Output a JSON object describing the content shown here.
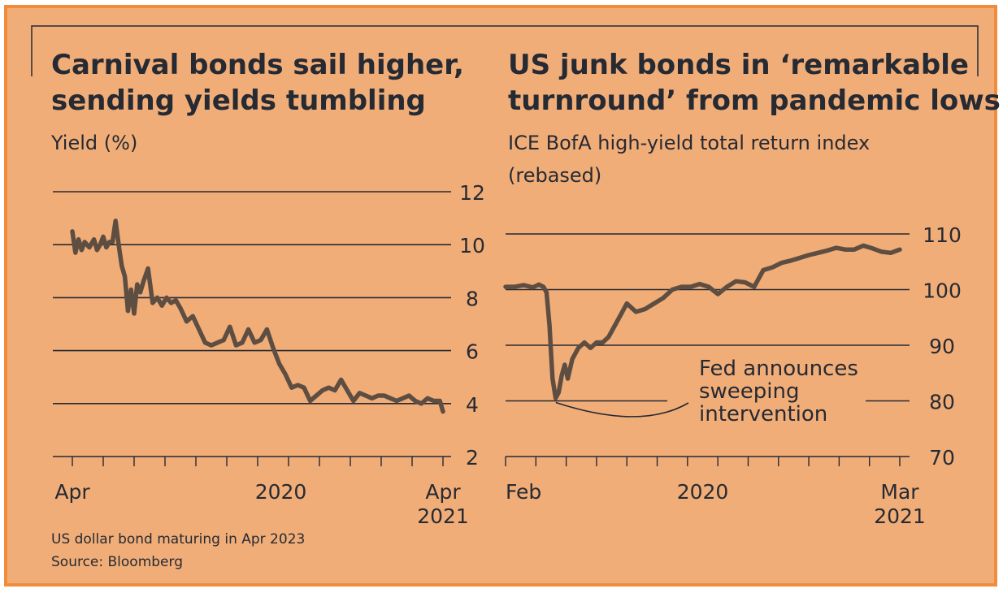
{
  "colors": {
    "background": "#f1ad78",
    "border": "#f08c3c",
    "line": "#5e4e42",
    "ink": "#262a33"
  },
  "chart_data": [
    {
      "type": "line",
      "title": "Carnival bonds sail higher, sending yields tumbling",
      "subtitle": "Yield (%)",
      "ylabel": "Yield (%)",
      "ylim": [
        2,
        12
      ],
      "yticks": [
        2,
        4,
        6,
        8,
        10,
        12
      ],
      "x_range": [
        0,
        12
      ],
      "x_tick_labels": [
        {
          "x": 0,
          "label": "Apr"
        },
        {
          "x": 6.75,
          "label": "2020"
        },
        {
          "x": 12,
          "label": "Apr\n2021"
        }
      ],
      "x_tick_positions": [
        0,
        1,
        2,
        3,
        4,
        5,
        6,
        7,
        8,
        9,
        10,
        11,
        12
      ],
      "grid": true,
      "footnote": "US dollar bond maturing in Apr 2023",
      "source": "Source: Bloomberg",
      "series": [
        {
          "name": "Carnival bond yield",
          "x": [
            0,
            0.1,
            0.2,
            0.3,
            0.4,
            0.55,
            0.7,
            0.8,
            0.9,
            1.0,
            1.1,
            1.2,
            1.3,
            1.4,
            1.5,
            1.6,
            1.7,
            1.8,
            1.9,
            2.0,
            2.1,
            2.2,
            2.3,
            2.45,
            2.6,
            2.75,
            2.9,
            3.05,
            3.2,
            3.35,
            3.5,
            3.7,
            3.9,
            4.1,
            4.3,
            4.5,
            4.7,
            4.9,
            5.1,
            5.3,
            5.5,
            5.7,
            5.9,
            6.1,
            6.3,
            6.5,
            6.7,
            6.9,
            7.1,
            7.3,
            7.5,
            7.7,
            7.9,
            8.1,
            8.3,
            8.5,
            8.7,
            8.9,
            9.1,
            9.3,
            9.5,
            9.7,
            9.9,
            10.1,
            10.3,
            10.5,
            10.7,
            10.9,
            11.1,
            11.3,
            11.5,
            11.7,
            11.9,
            12.0
          ],
          "values": [
            10.5,
            9.7,
            10.2,
            9.8,
            10.1,
            9.9,
            10.2,
            9.8,
            10.0,
            10.3,
            9.9,
            10.1,
            10.1,
            10.9,
            10.0,
            9.2,
            8.8,
            7.5,
            8.3,
            7.4,
            8.5,
            8.2,
            8.6,
            9.1,
            7.8,
            8.0,
            7.7,
            8.0,
            7.8,
            7.9,
            7.6,
            7.1,
            7.3,
            6.8,
            6.3,
            6.2,
            6.3,
            6.4,
            6.9,
            6.2,
            6.3,
            6.8,
            6.3,
            6.4,
            6.8,
            6.1,
            5.5,
            5.1,
            4.6,
            4.7,
            4.6,
            4.1,
            4.3,
            4.5,
            4.6,
            4.5,
            4.9,
            4.5,
            4.1,
            4.4,
            4.3,
            4.2,
            4.3,
            4.3,
            4.2,
            4.1,
            4.2,
            4.3,
            4.1,
            4.0,
            4.2,
            4.1,
            4.1,
            3.7
          ]
        }
      ]
    },
    {
      "type": "line",
      "title": "US junk bonds in ‘remarkable turnround’ from pandemic lows",
      "subtitle": "ICE BofA high-yield total return index (rebased)",
      "ylabel": "ICE BofA high-yield total return index (rebased)",
      "ylim": [
        70,
        110
      ],
      "yticks": [
        70,
        80,
        90,
        100,
        110
      ],
      "x_range": [
        0,
        13
      ],
      "x_tick_labels": [
        {
          "x": 0,
          "label": "Feb"
        },
        {
          "x": 6.5,
          "label": "2020"
        },
        {
          "x": 13,
          "label": "Mar\n2021"
        }
      ],
      "x_tick_positions": [
        0,
        1,
        2,
        3,
        4,
        5,
        6,
        7,
        8,
        9,
        10,
        11,
        12,
        13
      ],
      "grid": true,
      "annotation": {
        "text": "Fed announces\nsweeping\nintervention",
        "x": 1.55,
        "y": 80
      },
      "series": [
        {
          "name": "ICE BofA high-yield total return index",
          "x": [
            0,
            0.3,
            0.6,
            0.9,
            1.1,
            1.25,
            1.35,
            1.45,
            1.5,
            1.55,
            1.65,
            1.75,
            1.85,
            1.95,
            2.05,
            2.2,
            2.4,
            2.6,
            2.8,
            3.0,
            3.2,
            3.4,
            3.6,
            3.8,
            4.0,
            4.3,
            4.6,
            4.9,
            5.2,
            5.5,
            5.8,
            6.1,
            6.4,
            6.7,
            7.0,
            7.3,
            7.6,
            7.9,
            8.2,
            8.5,
            8.8,
            9.1,
            9.4,
            9.7,
            10.0,
            10.3,
            10.6,
            10.9,
            11.2,
            11.5,
            11.8,
            12.1,
            12.4,
            12.7,
            13.0
          ],
          "values": [
            100.5,
            100.5,
            100.8,
            100.4,
            100.9,
            100.5,
            99.5,
            93.5,
            88.5,
            84.0,
            80.5,
            81.5,
            84.5,
            86.5,
            84.0,
            87.5,
            89.5,
            90.5,
            89.5,
            90.5,
            90.5,
            91.5,
            93.5,
            95.5,
            97.5,
            96.0,
            96.5,
            97.5,
            98.5,
            100.0,
            100.5,
            100.5,
            101.0,
            100.5,
            99.2,
            100.5,
            101.5,
            101.3,
            100.5,
            103.5,
            104.0,
            104.8,
            105.2,
            105.7,
            106.2,
            106.6,
            107.0,
            107.5,
            107.2,
            107.2,
            107.9,
            107.4,
            106.8,
            106.6,
            107.2
          ]
        }
      ]
    }
  ]
}
